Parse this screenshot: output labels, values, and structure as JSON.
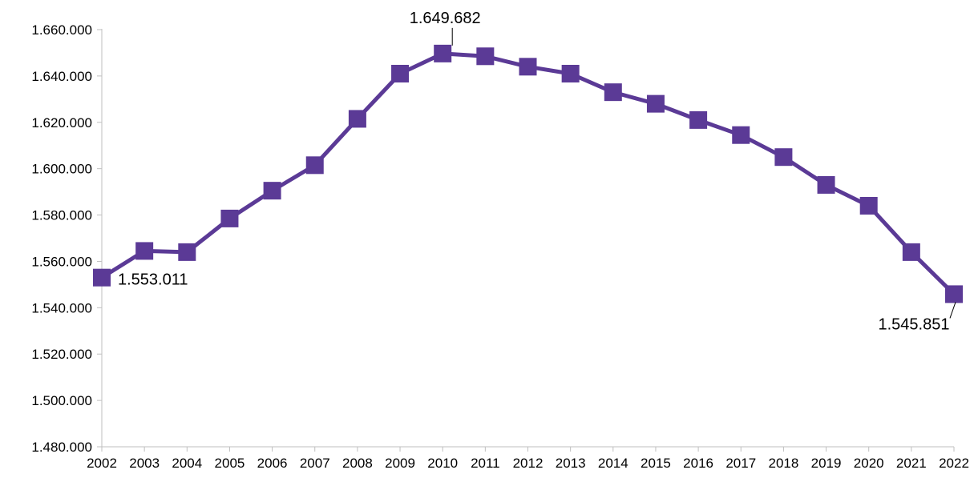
{
  "chart_data": {
    "type": "line",
    "title": "",
    "xlabel": "",
    "ylabel": "",
    "categories": [
      "2002",
      "2003",
      "2004",
      "2005",
      "2006",
      "2007",
      "2008",
      "2009",
      "2010",
      "2011",
      "2012",
      "2013",
      "2014",
      "2015",
      "2016",
      "2017",
      "2018",
      "2019",
      "2020",
      "2021",
      "2022"
    ],
    "series": [
      {
        "values": [
          1553011,
          1564500,
          1564000,
          1578500,
          1590500,
          1601500,
          1621500,
          1641000,
          1649682,
          1648500,
          1644000,
          1641000,
          1633000,
          1628000,
          1621000,
          1614500,
          1605000,
          1593000,
          1584000,
          1564000,
          1545851
        ]
      }
    ],
    "ylim": [
      1480000,
      1660000
    ],
    "yticks": [
      "1.480.000",
      "1.500.000",
      "1.520.000",
      "1.540.000",
      "1.560.000",
      "1.580.000",
      "1.600.000",
      "1.620.000",
      "1.640.000",
      "1.660.000"
    ],
    "data_labels": [
      {
        "index": 0,
        "text": "1.553.011"
      },
      {
        "index": 8,
        "text": "1.649.682"
      },
      {
        "index": 20,
        "text": "1.545.851"
      }
    ],
    "color": "#5b3a96",
    "marker": "square",
    "grid": false,
    "legend": "none"
  }
}
